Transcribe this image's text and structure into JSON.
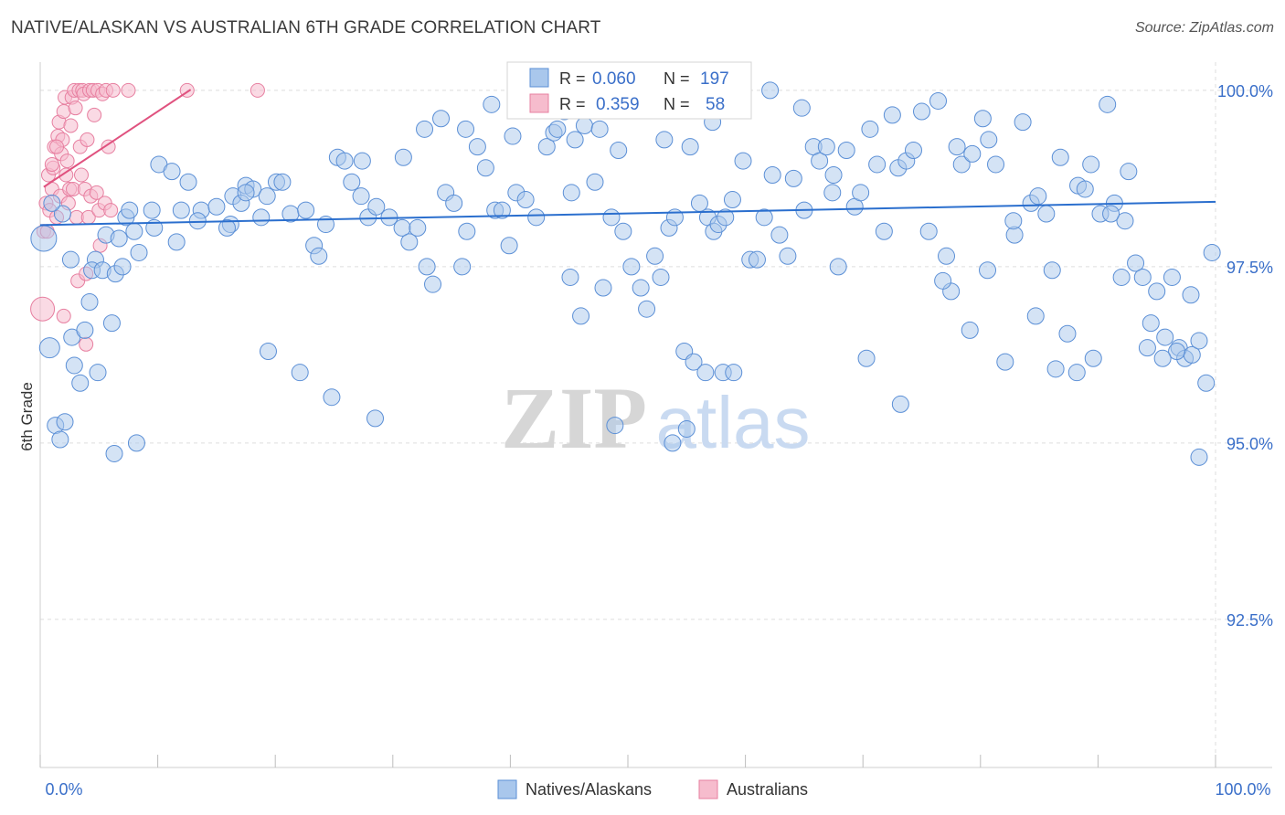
{
  "header": {
    "title": "NATIVE/ALASKAN VS AUSTRALIAN 6TH GRADE CORRELATION CHART",
    "source": "Source: ZipAtlas.com"
  },
  "watermark": {
    "zip": "ZIP",
    "atlas": "atlas"
  },
  "stats_legend": {
    "rows": [
      {
        "r_label": "R =",
        "r_value": "0.060",
        "n_label": "N =",
        "n_value": "197"
      },
      {
        "r_label": "R =",
        "r_value": "0.359",
        "n_label": "N =",
        "n_value": "58"
      }
    ]
  },
  "colors": {
    "blue_fill": "#a9c7ec",
    "blue_stroke": "#5b8fd6",
    "blue_line": "#2b6fce",
    "pink_fill": "#f6bccd",
    "pink_stroke": "#e77fa0",
    "pink_line": "#e0527f",
    "axis_text": "#3a6fc9",
    "grid": "#dedede"
  },
  "chart_data": {
    "type": "scatter",
    "title": "NATIVE/ALASKAN VS AUSTRALIAN 6TH GRADE CORRELATION CHART",
    "xlabel": "",
    "ylabel": "6th Grade",
    "xlim": [
      0,
      100
    ],
    "ylim": [
      90.4,
      100.4
    ],
    "x_tick_labels": [
      "0.0%",
      "100.0%"
    ],
    "y_ticks": [
      {
        "value": 100.0,
        "label": "100.0%"
      },
      {
        "value": 97.5,
        "label": "97.5%"
      },
      {
        "value": 95.0,
        "label": "95.0%"
      },
      {
        "value": 92.5,
        "label": "92.5%"
      }
    ],
    "grid": true,
    "legend_position": "bottom",
    "series": [
      {
        "name": "Natives/Alaskans",
        "r": 0.06,
        "n": 197,
        "trend": {
          "x": [
            0,
            100
          ],
          "y": [
            98.09,
            98.42
          ]
        },
        "points": [
          [
            0.3,
            97.9
          ],
          [
            0.8,
            96.35
          ],
          [
            1.3,
            95.25
          ],
          [
            1.7,
            95.05
          ],
          [
            2.1,
            95.3
          ],
          [
            2.7,
            96.5
          ],
          [
            3.8,
            96.6
          ],
          [
            2.9,
            96.1
          ],
          [
            4.7,
            97.6
          ],
          [
            4.2,
            97.0
          ],
          [
            4.4,
            97.45
          ],
          [
            5.3,
            97.45
          ],
          [
            5.6,
            97.95
          ],
          [
            6.1,
            96.7
          ],
          [
            6.4,
            97.4
          ],
          [
            6.7,
            97.9
          ],
          [
            7.0,
            97.5
          ],
          [
            7.3,
            98.2
          ],
          [
            7.6,
            98.3
          ],
          [
            8.0,
            98.0
          ],
          [
            8.4,
            97.7
          ],
          [
            9.5,
            98.3
          ],
          [
            10.1,
            98.95
          ],
          [
            11.2,
            98.85
          ],
          [
            12.0,
            98.3
          ],
          [
            12.6,
            98.7
          ],
          [
            13.7,
            98.3
          ],
          [
            15.0,
            98.35
          ],
          [
            16.2,
            98.1
          ],
          [
            16.4,
            98.5
          ],
          [
            17.1,
            98.4
          ],
          [
            17.5,
            98.65
          ],
          [
            18.1,
            98.6
          ],
          [
            18.8,
            98.2
          ],
          [
            19.3,
            98.5
          ],
          [
            20.1,
            98.7
          ],
          [
            20.6,
            98.7
          ],
          [
            21.3,
            98.25
          ],
          [
            22.6,
            98.3
          ],
          [
            23.3,
            97.8
          ],
          [
            23.7,
            97.65
          ],
          [
            24.3,
            98.1
          ],
          [
            25.3,
            99.05
          ],
          [
            26.5,
            98.7
          ],
          [
            27.3,
            98.5
          ],
          [
            27.9,
            98.2
          ],
          [
            28.6,
            98.35
          ],
          [
            29.7,
            98.2
          ],
          [
            30.8,
            98.05
          ],
          [
            31.4,
            97.85
          ],
          [
            32.1,
            98.05
          ],
          [
            32.9,
            97.5
          ],
          [
            33.4,
            97.25
          ],
          [
            34.5,
            98.55
          ],
          [
            35.2,
            98.4
          ],
          [
            35.9,
            97.5
          ],
          [
            36.3,
            98.0
          ],
          [
            37.2,
            99.2
          ],
          [
            37.9,
            98.9
          ],
          [
            38.7,
            98.3
          ],
          [
            39.3,
            98.3
          ],
          [
            39.9,
            97.8
          ],
          [
            40.5,
            98.55
          ],
          [
            41.3,
            98.45
          ],
          [
            42.2,
            98.2
          ],
          [
            43.1,
            99.2
          ],
          [
            43.7,
            99.4
          ],
          [
            44.0,
            99.45
          ],
          [
            44.6,
            99.7
          ],
          [
            45.2,
            98.55
          ],
          [
            46.0,
            96.8
          ],
          [
            46.3,
            99.5
          ],
          [
            47.2,
            98.7
          ],
          [
            47.9,
            97.2
          ],
          [
            48.6,
            98.2
          ],
          [
            49.2,
            99.15
          ],
          [
            49.6,
            98.0
          ],
          [
            50.3,
            97.5
          ],
          [
            51.1,
            97.2
          ],
          [
            51.6,
            96.9
          ],
          [
            52.3,
            97.65
          ],
          [
            52.8,
            97.35
          ],
          [
            53.5,
            98.05
          ],
          [
            54.0,
            98.2
          ],
          [
            54.8,
            96.3
          ],
          [
            55.6,
            96.15
          ],
          [
            56.1,
            98.4
          ],
          [
            56.8,
            98.2
          ],
          [
            57.3,
            98.0
          ],
          [
            57.7,
            98.1
          ],
          [
            58.3,
            98.2
          ],
          [
            58.9,
            98.45
          ],
          [
            59.8,
            99.0
          ],
          [
            60.4,
            97.6
          ],
          [
            61.0,
            97.6
          ],
          [
            61.6,
            98.2
          ],
          [
            62.3,
            98.8
          ],
          [
            62.9,
            97.95
          ],
          [
            63.6,
            97.65
          ],
          [
            64.1,
            98.75
          ],
          [
            65.0,
            98.3
          ],
          [
            65.8,
            99.2
          ],
          [
            66.3,
            99.0
          ],
          [
            66.9,
            99.2
          ],
          [
            67.5,
            98.8
          ],
          [
            67.9,
            97.5
          ],
          [
            68.6,
            99.15
          ],
          [
            69.3,
            98.35
          ],
          [
            69.8,
            98.55
          ],
          [
            70.6,
            99.45
          ],
          [
            71.2,
            98.95
          ],
          [
            71.8,
            98.0
          ],
          [
            72.5,
            99.65
          ],
          [
            73.0,
            98.9
          ],
          [
            73.7,
            99.0
          ],
          [
            74.3,
            99.15
          ],
          [
            75.0,
            99.7
          ],
          [
            75.6,
            98.0
          ],
          [
            76.4,
            99.85
          ],
          [
            77.1,
            97.65
          ],
          [
            77.5,
            97.15
          ],
          [
            78.0,
            99.2
          ],
          [
            78.4,
            98.95
          ],
          [
            79.3,
            99.1
          ],
          [
            80.2,
            99.6
          ],
          [
            80.7,
            99.3
          ],
          [
            81.3,
            98.95
          ],
          [
            82.1,
            96.15
          ],
          [
            82.9,
            97.95
          ],
          [
            83.6,
            99.55
          ],
          [
            84.3,
            98.4
          ],
          [
            84.9,
            98.5
          ],
          [
            85.6,
            98.25
          ],
          [
            86.1,
            97.45
          ],
          [
            86.8,
            99.05
          ],
          [
            87.4,
            96.55
          ],
          [
            88.3,
            98.65
          ],
          [
            88.9,
            98.6
          ],
          [
            89.4,
            98.95
          ],
          [
            90.2,
            98.25
          ],
          [
            90.8,
            99.8
          ],
          [
            91.4,
            98.4
          ],
          [
            92.0,
            97.35
          ],
          [
            92.6,
            98.85
          ],
          [
            93.2,
            97.55
          ],
          [
            93.8,
            97.35
          ],
          [
            94.5,
            96.7
          ],
          [
            95.0,
            97.15
          ],
          [
            95.7,
            96.5
          ],
          [
            96.3,
            97.35
          ],
          [
            96.9,
            96.35
          ],
          [
            97.4,
            96.2
          ],
          [
            98.0,
            96.25
          ],
          [
            98.6,
            96.45
          ],
          [
            99.2,
            95.85
          ],
          [
            99.7,
            97.7
          ],
          [
            98.6,
            94.8
          ],
          [
            97.9,
            97.1
          ],
          [
            96.7,
            96.3
          ],
          [
            95.5,
            96.2
          ],
          [
            94.2,
            96.35
          ],
          [
            92.3,
            98.15
          ],
          [
            91.1,
            98.25
          ],
          [
            89.6,
            96.2
          ],
          [
            88.2,
            96.0
          ],
          [
            86.4,
            96.05
          ],
          [
            84.7,
            96.8
          ],
          [
            82.8,
            98.15
          ],
          [
            80.6,
            97.45
          ],
          [
            79.1,
            96.6
          ],
          [
            76.8,
            97.3
          ],
          [
            73.2,
            95.55
          ],
          [
            70.3,
            96.2
          ],
          [
            67.4,
            98.55
          ],
          [
            64.8,
            99.75
          ],
          [
            62.1,
            100.0
          ],
          [
            59.6,
            100.0
          ],
          [
            57.2,
            99.55
          ],
          [
            55.3,
            99.2
          ],
          [
            53.1,
            99.3
          ],
          [
            51.4,
            100.0
          ],
          [
            49.8,
            100.0
          ],
          [
            47.6,
            99.45
          ],
          [
            45.5,
            99.3
          ],
          [
            43.6,
            100.0
          ],
          [
            41.9,
            100.0
          ],
          [
            40.2,
            99.35
          ],
          [
            38.4,
            99.8
          ],
          [
            36.2,
            99.45
          ],
          [
            34.1,
            99.6
          ],
          [
            32.7,
            99.45
          ],
          [
            30.9,
            99.05
          ],
          [
            28.5,
            95.35
          ],
          [
            27.4,
            99.0
          ],
          [
            25.9,
            99.0
          ],
          [
            24.8,
            95.65
          ],
          [
            22.1,
            96.0
          ],
          [
            19.4,
            96.3
          ],
          [
            17.5,
            98.55
          ],
          [
            15.9,
            98.05
          ],
          [
            13.4,
            98.15
          ],
          [
            11.6,
            97.85
          ],
          [
            9.7,
            98.05
          ],
          [
            8.2,
            95.0
          ],
          [
            6.3,
            94.85
          ],
          [
            4.9,
            96.0
          ],
          [
            3.4,
            95.85
          ],
          [
            2.6,
            97.6
          ],
          [
            1.9,
            98.25
          ],
          [
            1.0,
            98.4
          ],
          [
            45.1,
            97.35
          ],
          [
            48.9,
            95.25
          ],
          [
            53.8,
            95.0
          ],
          [
            55.0,
            95.2
          ],
          [
            56.6,
            96.0
          ],
          [
            58.1,
            96.0
          ],
          [
            59.0,
            96.0
          ]
        ]
      },
      {
        "name": "Australians",
        "r": 0.359,
        "n": 58,
        "trend": {
          "x": [
            0.3,
            12.8
          ],
          "y": [
            98.63,
            100.01
          ]
        },
        "points": [
          [
            0.2,
            96.9
          ],
          [
            0.3,
            98.0
          ],
          [
            0.5,
            98.4
          ],
          [
            0.7,
            98.8
          ],
          [
            0.8,
            98.3
          ],
          [
            1.0,
            98.6
          ],
          [
            1.1,
            98.9
          ],
          [
            1.2,
            99.2
          ],
          [
            1.4,
            98.2
          ],
          [
            1.5,
            99.35
          ],
          [
            1.6,
            99.55
          ],
          [
            1.7,
            98.5
          ],
          [
            1.8,
            99.1
          ],
          [
            1.9,
            99.3
          ],
          [
            2.0,
            99.7
          ],
          [
            2.1,
            99.9
          ],
          [
            2.2,
            98.8
          ],
          [
            2.3,
            99.0
          ],
          [
            2.4,
            98.4
          ],
          [
            2.5,
            98.6
          ],
          [
            2.6,
            99.5
          ],
          [
            2.7,
            99.9
          ],
          [
            2.8,
            98.6
          ],
          [
            2.9,
            100.0
          ],
          [
            3.0,
            99.75
          ],
          [
            3.1,
            98.2
          ],
          [
            3.2,
            97.3
          ],
          [
            3.3,
            100.0
          ],
          [
            3.4,
            99.2
          ],
          [
            3.5,
            98.8
          ],
          [
            3.6,
            100.0
          ],
          [
            3.7,
            99.95
          ],
          [
            3.8,
            98.6
          ],
          [
            3.9,
            97.4
          ],
          [
            4.0,
            99.3
          ],
          [
            4.1,
            98.2
          ],
          [
            4.2,
            100.0
          ],
          [
            4.3,
            98.5
          ],
          [
            4.5,
            100.0
          ],
          [
            4.6,
            99.65
          ],
          [
            4.8,
            98.55
          ],
          [
            4.9,
            100.0
          ],
          [
            5.0,
            98.3
          ],
          [
            5.1,
            97.8
          ],
          [
            5.3,
            99.95
          ],
          [
            5.5,
            98.4
          ],
          [
            5.6,
            100.0
          ],
          [
            5.8,
            99.2
          ],
          [
            6.0,
            98.3
          ],
          [
            6.2,
            100.0
          ],
          [
            7.5,
            100.0
          ],
          [
            12.5,
            100.0
          ],
          [
            18.5,
            100.0
          ],
          [
            2.0,
            96.8
          ],
          [
            3.9,
            96.4
          ],
          [
            1.0,
            98.95
          ],
          [
            0.6,
            98.0
          ],
          [
            1.4,
            99.2
          ]
        ]
      }
    ]
  }
}
